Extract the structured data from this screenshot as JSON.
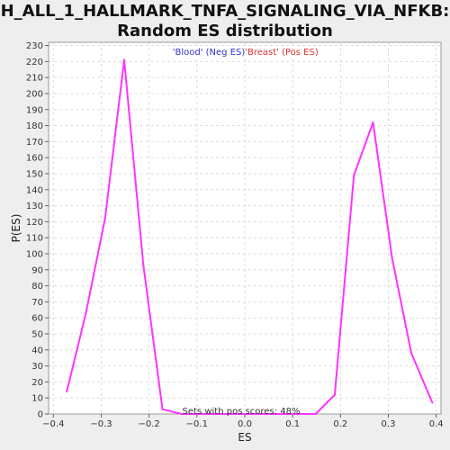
{
  "chart_data": {
    "type": "line",
    "title": "H_ALL_1_HALLMARK_TNFA_SIGNALING_VIA_NFKB:",
    "subtitle": "Random ES distribution",
    "xlabel": "ES",
    "ylabel": "P(ES)",
    "xlim": [
      -0.41,
      0.41
    ],
    "ylim": [
      0,
      232
    ],
    "xticks": [
      -0.4,
      -0.3,
      -0.2,
      -0.1,
      0.0,
      0.1,
      0.2,
      0.3,
      0.4
    ],
    "xtick_labels": [
      "−0.4",
      "−0.3",
      "−0.2",
      "−0.1",
      "0.0",
      "0.1",
      "0.2",
      "0.3",
      "0.4"
    ],
    "yticks": [
      0,
      10,
      20,
      30,
      40,
      50,
      60,
      70,
      80,
      90,
      100,
      110,
      120,
      130,
      140,
      150,
      160,
      170,
      180,
      190,
      200,
      210,
      220,
      230
    ],
    "grid": true,
    "legend": [
      {
        "label": "'Blood' (Neg ES)",
        "color": "#3333cc"
      },
      {
        "label": "'Breast' (Pos ES)",
        "color": "#dd3333"
      }
    ],
    "legend_placement": "top-center",
    "series": [
      {
        "color": "#ff33ff",
        "x": [
          -0.372,
          -0.332,
          -0.292,
          -0.252,
          -0.212,
          -0.172,
          -0.132,
          -0.092,
          -0.052,
          -0.012,
          0.028,
          0.068,
          0.108,
          0.148,
          0.188,
          0.228,
          0.268,
          0.308,
          0.348,
          0.392
        ],
        "y": [
          14,
          63,
          122,
          221,
          93,
          3,
          0,
          0,
          0,
          0,
          0,
          0,
          0,
          0,
          12,
          149,
          182,
          97,
          38,
          7
        ]
      }
    ],
    "annotation": "Sets with pos scores: 48%"
  }
}
